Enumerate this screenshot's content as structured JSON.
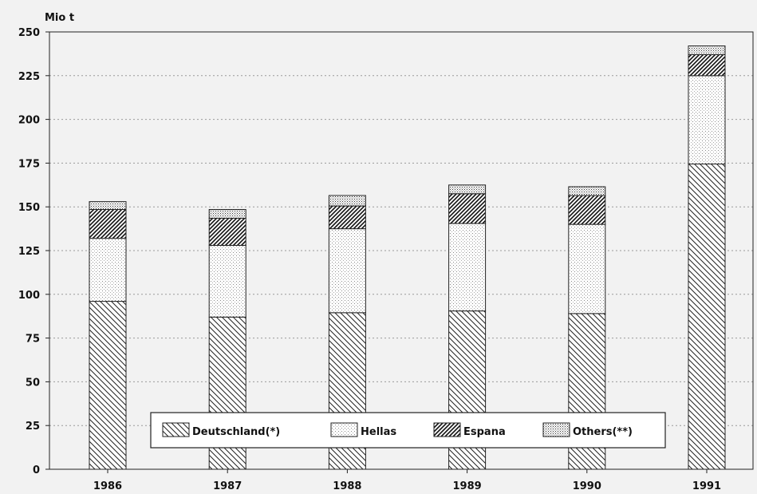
{
  "chart_data": {
    "type": "bar",
    "stacked": true,
    "ylabel": "Mio t",
    "ylim": [
      0,
      250
    ],
    "yticks": [
      "0",
      "25",
      "50",
      "75",
      "100",
      "125",
      "150",
      "175",
      "200",
      "225",
      "250"
    ],
    "categories": [
      "1986",
      "1987",
      "1988",
      "1989",
      "1990",
      "1991"
    ],
    "grid": true,
    "legend_position": "bottom-center",
    "series": [
      {
        "name": "Deutschland(*)",
        "pattern": "diagonal-back",
        "values": [
          96,
          87,
          89.5,
          90.5,
          89,
          174.5
        ]
      },
      {
        "name": "Hellas",
        "pattern": "light-dots",
        "values": [
          36,
          41,
          48,
          50,
          51,
          50.5
        ]
      },
      {
        "name": "Espana",
        "pattern": "diagonal-forward",
        "values": [
          16.5,
          15.5,
          13,
          17,
          16.5,
          12
        ]
      },
      {
        "name": "Others(**)",
        "pattern": "dense-dots",
        "values": [
          4.5,
          5,
          6,
          5,
          5,
          5
        ]
      }
    ]
  }
}
